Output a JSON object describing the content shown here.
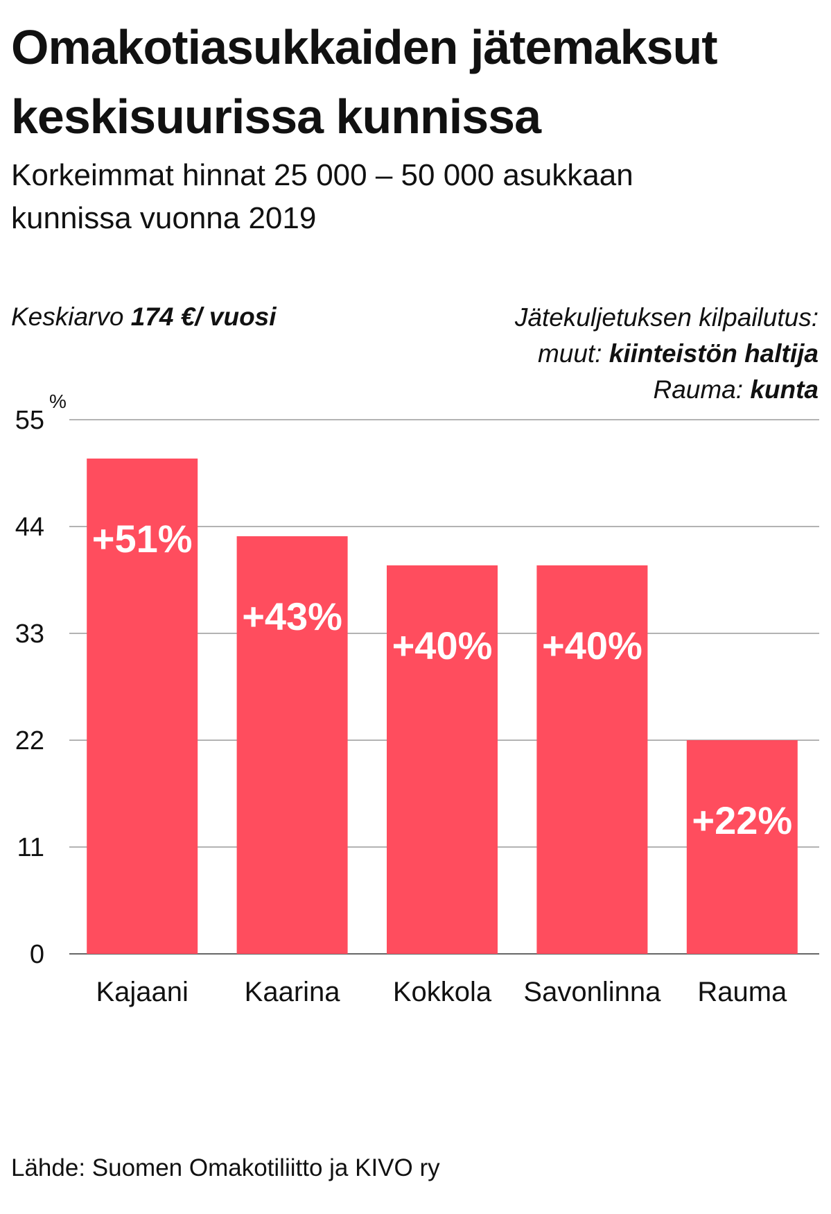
{
  "title": {
    "line1": "Omakotiasukkaiden jätemaksut",
    "line2": "keskisuurissa kunnissa"
  },
  "subtitle": {
    "line1": "Korkeimmat hinnat 25 000 – 50 000 asukkaan",
    "line2": "kunnissa vuonna 2019"
  },
  "note_left": {
    "prefix": "Keskiarvo ",
    "value": "174 €/ vuosi"
  },
  "note_right": {
    "heading": "Jätekuljetuksen kilpailutus:",
    "others_label": "muut: ",
    "others_value": "kiinteistön haltija",
    "rauma_label": "Rauma: ",
    "rauma_value": "kunta"
  },
  "source": "Lähde: Suomen Omakotiliitto ja KIVO ry",
  "colors": {
    "bar": "#ff4d5e",
    "grid": "#9a9a9a",
    "axis": "#666666",
    "label": "#ffffff"
  },
  "chart_data": {
    "type": "bar",
    "categories": [
      "Kajaani",
      "Kaarina",
      "Kokkola",
      "Savonlinna",
      "Rauma"
    ],
    "values": [
      51,
      43,
      40,
      40,
      22
    ],
    "value_labels": [
      "+51%",
      "+43%",
      "+40%",
      "+40%",
      "+22%"
    ],
    "y_unit": "%",
    "yticks": [
      0,
      11,
      22,
      33,
      44,
      55
    ],
    "ylim": [
      0,
      55
    ],
    "grid": true
  }
}
